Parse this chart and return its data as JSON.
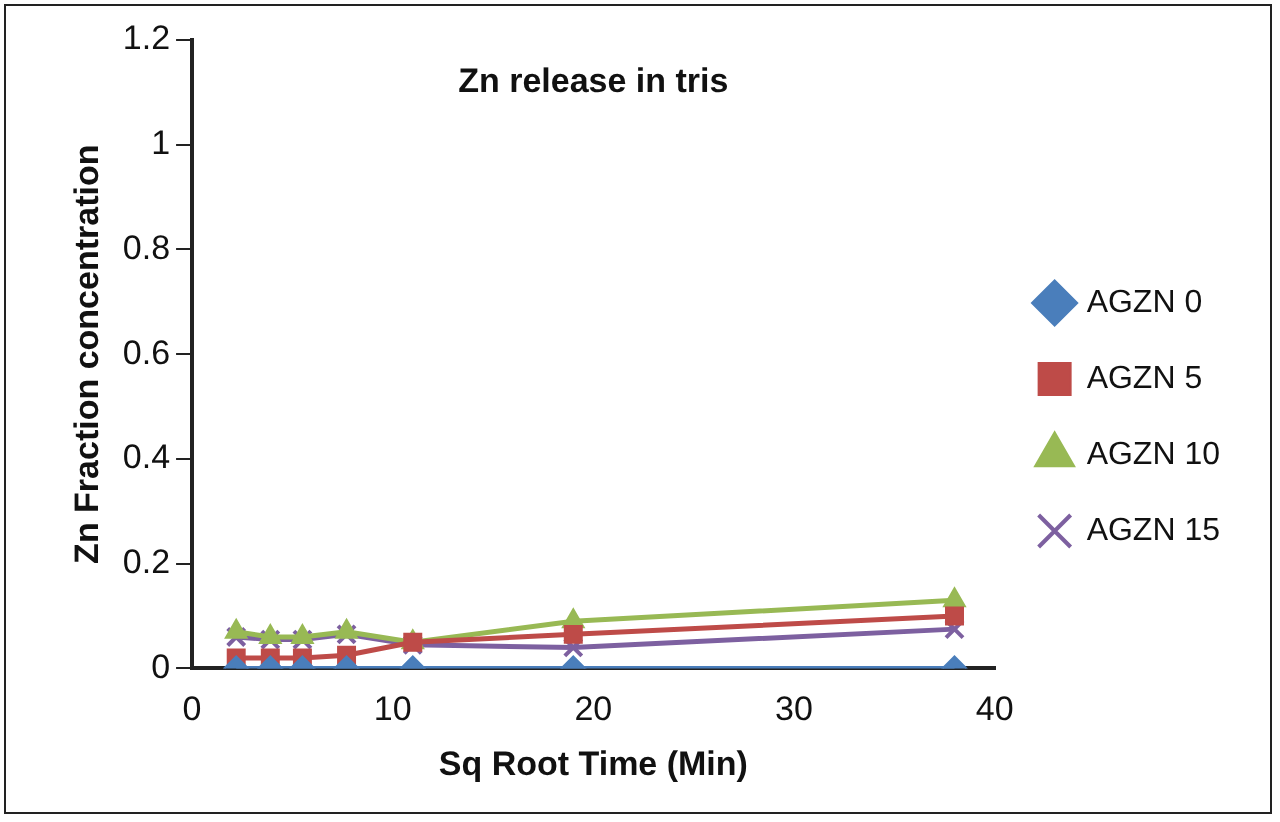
{
  "chart_data": {
    "type": "line",
    "title": "Zn release in tris",
    "xlabel": "Sq Root Time (Min)",
    "ylabel": "Zn Fraction concentration",
    "x": [
      2.2,
      3.9,
      5.5,
      7.7,
      11,
      19,
      38
    ],
    "series": [
      {
        "name": "AGZN 0",
        "color": "#4a7ebb",
        "marker": "diamond",
        "values": [
          0,
          0,
          0,
          0,
          0,
          0,
          0
        ]
      },
      {
        "name": "AGZN 5",
        "color": "#be4b48",
        "marker": "square",
        "values": [
          0.02,
          0.02,
          0.02,
          0.025,
          0.05,
          0.065,
          0.1
        ]
      },
      {
        "name": "AGZN 10",
        "color": "#98b954",
        "marker": "triangle",
        "values": [
          0.07,
          0.06,
          0.06,
          0.07,
          0.05,
          0.09,
          0.13
        ]
      },
      {
        "name": "AGZN 15",
        "color": "#7d60a0",
        "marker": "cross",
        "values": [
          0.06,
          0.055,
          0.055,
          0.065,
          0.045,
          0.04,
          0.075
        ]
      }
    ],
    "xlim": [
      0,
      40
    ],
    "xticks": [
      0,
      10,
      20,
      30,
      40
    ],
    "ylim": [
      0,
      1.2
    ],
    "yticks": [
      0,
      0.2,
      0.4,
      0.6,
      0.8,
      1,
      1.2
    ],
    "grid": false,
    "legend": "right"
  }
}
